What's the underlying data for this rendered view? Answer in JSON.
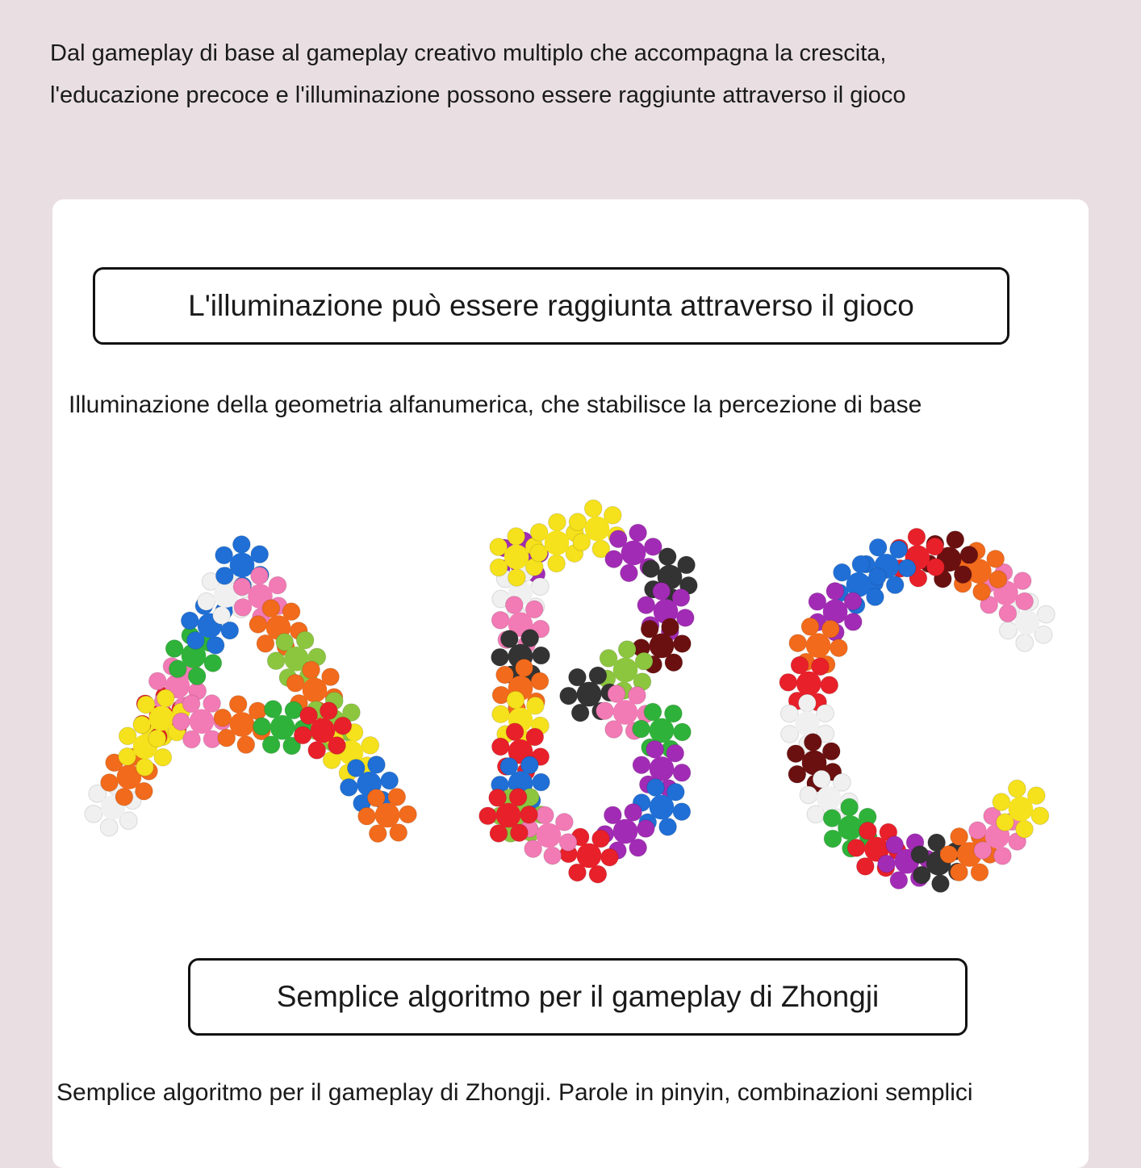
{
  "intro": {
    "line1": "Dal gameplay di base al gameplay creativo multiplo che accompagna la crescita,",
    "line2": "l'educazione precoce e l'illuminazione possono essere raggiunte attraverso il gioco"
  },
  "section1": {
    "heading": "L'illuminazione può essere raggiunta attraverso il gioco",
    "caption": "Illuminazione della geometria alfanumerica, che stabilisce la percezione di base"
  },
  "image": {
    "letters": [
      "A",
      "B",
      "C"
    ],
    "description_icon": "abc-building-blocks"
  },
  "section2": {
    "heading": "Semplice algoritmo per il gameplay di Zhongji",
    "caption": "Semplice algoritmo per il gameplay di Zhongji. Parole in pinyin, combinazioni semplici"
  },
  "colors": {
    "background": "#e9dfe2",
    "card": "#ffffff",
    "border": "#111111"
  }
}
